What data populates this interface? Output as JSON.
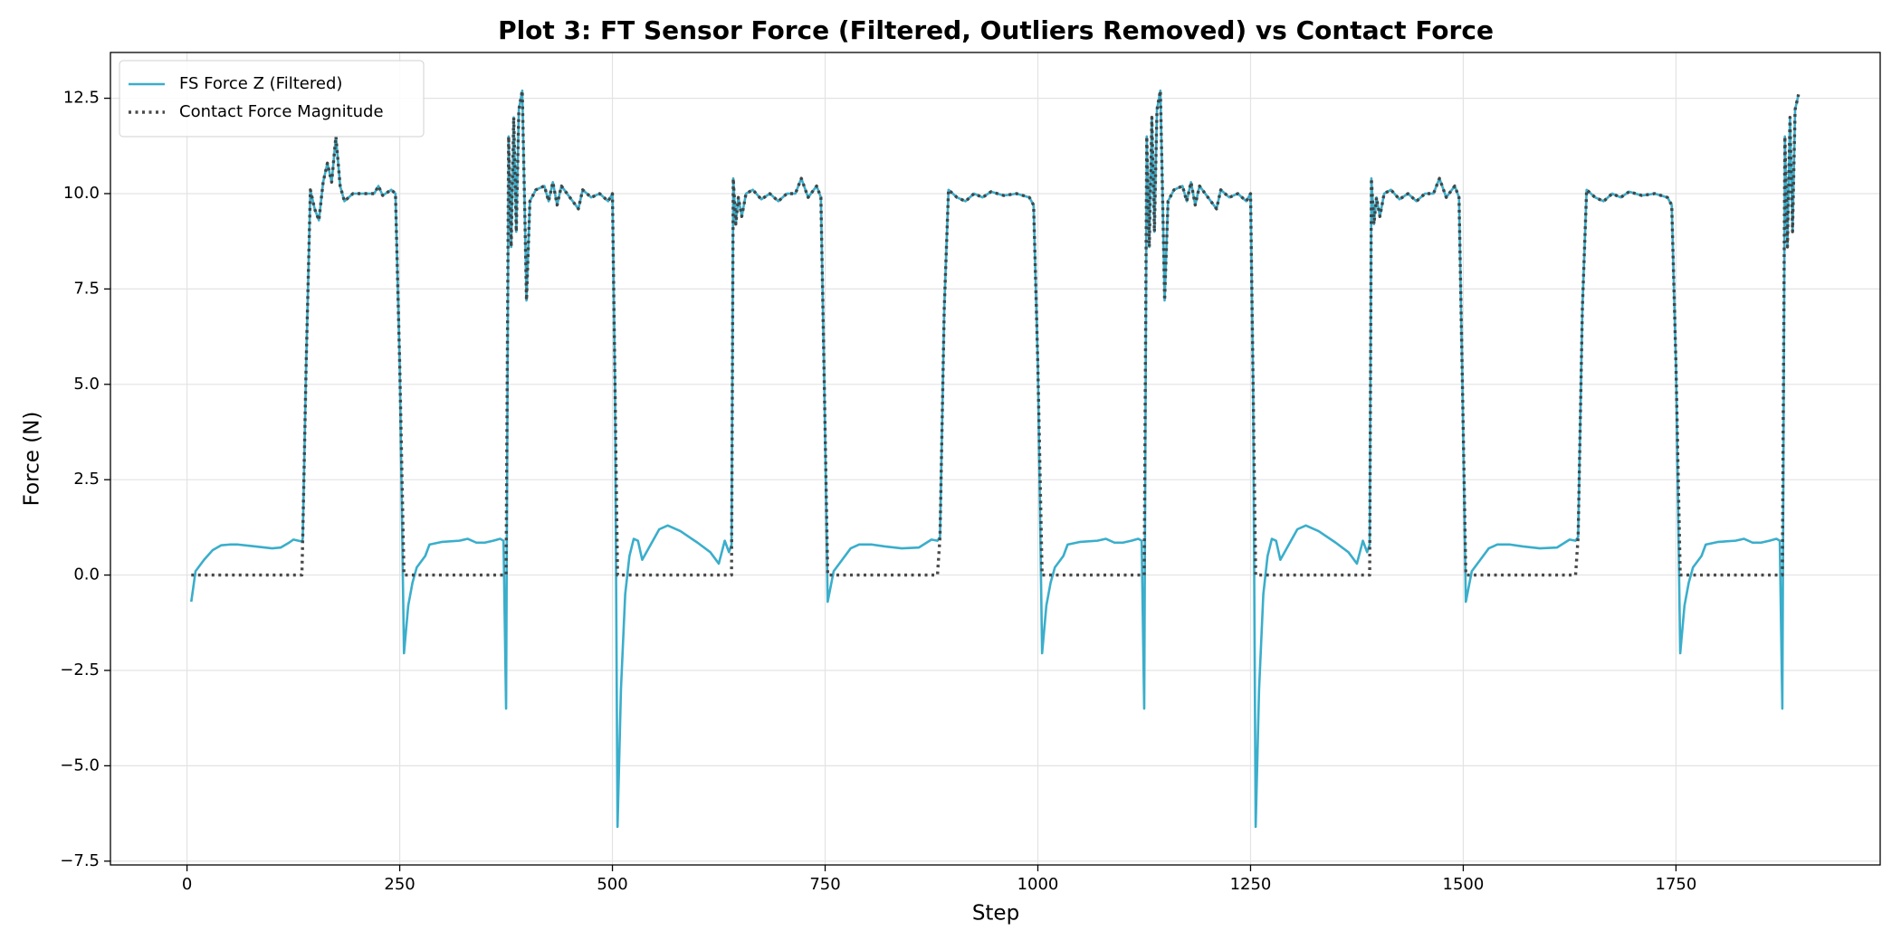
{
  "chart_data": {
    "type": "line",
    "title": "Plot 3: FT Sensor Force (Filtered, Outliers Removed) vs Contact Force",
    "xlabel": "Step",
    "ylabel": "Force (N)",
    "x": [
      5,
      10,
      20,
      30,
      40,
      50,
      60,
      80,
      100,
      110,
      120,
      125,
      135,
      136,
      140,
      145,
      150,
      155,
      160,
      165,
      170,
      175,
      180,
      185,
      195,
      210,
      220,
      225,
      230,
      240,
      245,
      250,
      255,
      260,
      265,
      270,
      280,
      285,
      300,
      320,
      330,
      340,
      350,
      360,
      368,
      372,
      375,
      378,
      381,
      384,
      387,
      390,
      394,
      397,
      399,
      403,
      410,
      420,
      425,
      430,
      435,
      440,
      450,
      460,
      465,
      475,
      485,
      495,
      500,
      503,
      506,
      510,
      515,
      520,
      525,
      530,
      535,
      545,
      555,
      565,
      580,
      600,
      615,
      625,
      632,
      637,
      640,
      642,
      645,
      648,
      652,
      657,
      665,
      675,
      685,
      695,
      705,
      715,
      722,
      730,
      740,
      745,
      749,
      753,
      760,
      770,
      780,
      790,
      805,
      820,
      840,
      860,
      875,
      882,
      885,
      890,
      895,
      905,
      915,
      925,
      935,
      945,
      960,
      975,
      990,
      995,
      1000,
      1005,
      1010,
      1015,
      1020,
      1030,
      1035,
      1050,
      1070,
      1080,
      1090,
      1100,
      1110,
      1118,
      1122,
      1125,
      1128,
      1131,
      1134,
      1137,
      1140,
      1144,
      1147,
      1149,
      1153,
      1160,
      1170,
      1175,
      1180,
      1185,
      1190,
      1200,
      1210,
      1215,
      1225,
      1235,
      1245,
      1250,
      1253,
      1256,
      1260,
      1265,
      1270,
      1275,
      1280,
      1285,
      1295,
      1305,
      1315,
      1330,
      1350,
      1365,
      1375,
      1382,
      1387,
      1390,
      1392,
      1395,
      1398,
      1402,
      1407,
      1415,
      1425,
      1435,
      1445,
      1455,
      1465,
      1472,
      1480,
      1490,
      1495,
      1499,
      1503,
      1510,
      1520,
      1530,
      1540,
      1555,
      1570,
      1590,
      1610,
      1625,
      1632,
      1635,
      1640,
      1645,
      1655,
      1665,
      1675,
      1685,
      1695,
      1710,
      1725,
      1740,
      1745,
      1750,
      1755,
      1760,
      1765,
      1770,
      1780,
      1785,
      1800,
      1820,
      1830,
      1840,
      1850,
      1860,
      1868,
      1872,
      1875,
      1878,
      1881,
      1884,
      1887,
      1890,
      1894
    ],
    "series": [
      {
        "name": "FS Force Z (Filtered)",
        "color": "#3aaecb",
        "style": "solid",
        "values": [
          -0.7,
          0.1,
          0.4,
          0.65,
          0.78,
          0.8,
          0.8,
          0.75,
          0.7,
          0.72,
          0.85,
          0.93,
          0.88,
          0.95,
          5.5,
          10.1,
          9.6,
          9.3,
          10.3,
          10.8,
          10.3,
          11.5,
          10.2,
          9.8,
          10.0,
          10.0,
          10.0,
          10.2,
          9.95,
          10.1,
          10.0,
          5.5,
          -2.05,
          -0.8,
          -0.2,
          0.2,
          0.5,
          0.8,
          0.87,
          0.9,
          0.95,
          0.85,
          0.85,
          0.9,
          0.95,
          0.9,
          -3.5,
          11.5,
          8.6,
          12.0,
          9.0,
          12.2,
          12.7,
          9.5,
          7.2,
          9.8,
          10.1,
          10.2,
          9.8,
          10.3,
          9.7,
          10.2,
          9.9,
          9.6,
          10.1,
          9.9,
          10.0,
          9.8,
          10.0,
          5,
          -6.6,
          -3,
          -0.5,
          0.5,
          0.95,
          0.9,
          0.4,
          0.8,
          1.2,
          1.3,
          1.15,
          0.85,
          0.6,
          0.3,
          0.9,
          0.6,
          0.8,
          10.4,
          9.2,
          9.9,
          9.4,
          10.0,
          10.1,
          9.85,
          10.0,
          9.8,
          10.0,
          10.0,
          10.4,
          9.9,
          10.2,
          9.9,
          5,
          -0.7,
          0.1,
          0.4,
          0.7,
          0.8,
          0.8,
          0.75,
          0.7,
          0.72,
          0.93,
          0.9,
          1.0,
          7.0,
          10.1,
          9.9,
          9.8,
          10.0,
          9.9,
          10.05,
          9.95,
          10.0,
          9.9,
          9.7,
          5.5,
          -2.05,
          -0.8,
          -0.2,
          0.2,
          0.5,
          0.8,
          0.87,
          0.9,
          0.95,
          0.85,
          0.85,
          0.9,
          0.95,
          0.9,
          -3.5,
          11.5,
          8.6,
          12.0,
          9.0,
          12.2,
          12.7,
          9.5,
          7.2,
          9.8,
          10.1,
          10.2,
          9.8,
          10.3,
          9.7,
          10.2,
          9.9,
          9.6,
          10.1,
          9.9,
          10.0,
          9.8,
          10.0,
          5,
          -6.6,
          -3,
          -0.5,
          0.5,
          0.95,
          0.9,
          0.4,
          0.8,
          1.2,
          1.3,
          1.15,
          0.85,
          0.6,
          0.3,
          0.9,
          0.6,
          0.8,
          10.4,
          9.2,
          9.9,
          9.4,
          10.0,
          10.1,
          9.85,
          10.0,
          9.8,
          10.0,
          10.0,
          10.4,
          9.9,
          10.2,
          9.9,
          5,
          -0.7,
          0.1,
          0.4,
          0.7,
          0.8,
          0.8,
          0.75,
          0.7,
          0.72,
          0.93,
          0.9,
          1.0,
          7.0,
          10.1,
          9.9,
          9.8,
          10.0,
          9.9,
          10.05,
          9.95,
          10.0,
          9.9,
          9.7,
          5.5,
          -2.05,
          -0.8,
          -0.2,
          0.2,
          0.5,
          0.8,
          0.87,
          0.9,
          0.95,
          0.85,
          0.85,
          0.9,
          0.95,
          0.9,
          -3.5,
          11.5,
          8.6,
          12.0,
          9.0,
          12.2,
          12.6
        ]
      },
      {
        "name": "Contact Force Magnitude",
        "color": "#404040",
        "style": "dotted",
        "values": [
          0,
          0,
          0,
          0,
          0,
          0,
          0,
          0,
          0,
          0,
          0,
          0,
          0,
          0.95,
          5.5,
          10.1,
          9.6,
          9.3,
          10.3,
          10.8,
          10.3,
          11.5,
          10.2,
          9.8,
          10.0,
          10.0,
          10.0,
          10.2,
          9.95,
          10.1,
          10.0,
          5.5,
          0,
          0,
          0,
          0,
          0,
          0,
          0,
          0,
          0,
          0,
          0,
          0,
          0,
          0,
          0,
          11.5,
          8.6,
          12.0,
          9.0,
          12.2,
          12.7,
          9.5,
          7.2,
          9.8,
          10.1,
          10.2,
          9.8,
          10.3,
          9.7,
          10.2,
          9.9,
          9.6,
          10.1,
          9.9,
          10.0,
          9.8,
          10.0,
          5,
          0,
          0,
          0,
          0,
          0,
          0,
          0,
          0,
          0,
          0,
          0,
          0,
          0,
          0,
          0,
          0,
          0,
          10.4,
          9.2,
          9.9,
          9.4,
          10.0,
          10.1,
          9.85,
          10.0,
          9.8,
          10.0,
          10.0,
          10.4,
          9.9,
          10.2,
          9.9,
          5,
          0,
          0,
          0,
          0,
          0,
          0,
          0,
          0,
          0,
          0,
          0,
          1.0,
          7.0,
          10.1,
          9.9,
          9.8,
          10.0,
          9.9,
          10.05,
          9.95,
          10.0,
          9.9,
          9.7,
          5.5,
          0,
          0,
          0,
          0,
          0,
          0,
          0,
          0,
          0,
          0,
          0,
          0,
          0,
          0,
          0,
          11.5,
          8.6,
          12.0,
          9.0,
          12.2,
          12.7,
          9.5,
          7.2,
          9.8,
          10.1,
          10.2,
          9.8,
          10.3,
          9.7,
          10.2,
          9.9,
          9.6,
          10.1,
          9.9,
          10.0,
          9.8,
          10.0,
          5,
          0,
          0,
          0,
          0,
          0,
          0,
          0,
          0,
          0,
          0,
          0,
          0,
          0,
          0,
          0,
          0,
          0,
          10.4,
          9.2,
          9.9,
          9.4,
          10.0,
          10.1,
          9.85,
          10.0,
          9.8,
          10.0,
          10.0,
          10.4,
          9.9,
          10.2,
          9.9,
          5,
          0,
          0,
          0,
          0,
          0,
          0,
          0,
          0,
          0,
          0,
          0,
          1.0,
          7.0,
          10.1,
          9.9,
          9.8,
          10.0,
          9.9,
          10.05,
          9.95,
          10.0,
          9.9,
          9.7,
          5.5,
          0,
          0,
          0,
          0,
          0,
          0,
          0,
          0,
          0,
          0,
          0,
          0,
          0,
          0,
          0,
          11.5,
          8.6,
          12.0,
          9.0,
          12.2,
          12.6
        ]
      }
    ],
    "xlim": [
      -90,
      1990
    ],
    "xticks": [
      0,
      250,
      500,
      750,
      1000,
      1250,
      1500,
      1750
    ],
    "ylim": [
      -7.6,
      13.7
    ],
    "yticks": [
      {
        "value": -7.5,
        "label": "−7.5"
      },
      {
        "value": -5,
        "label": "−5.0"
      },
      {
        "value": -2.5,
        "label": "−2.5"
      },
      {
        "value": 0,
        "label": "0.0"
      },
      2.5,
      {
        "value": 5,
        "label": "5.0"
      },
      7.5,
      {
        "value": 10,
        "label": "10.0"
      },
      12.5
    ],
    "grid": true,
    "legend": "upper left"
  }
}
